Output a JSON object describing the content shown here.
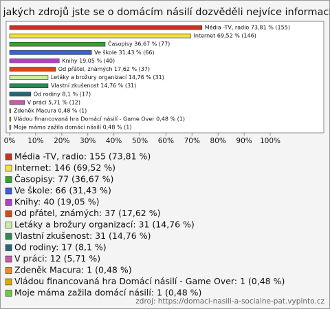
{
  "chart_data": {
    "type": "bar",
    "orientation": "horizontal",
    "title": "Z jakých zdrojů jste se o domácím násilí dozvěděli nejvíce informací?",
    "categories": [
      "Média -TV, radio",
      "Internet",
      "Časopisy",
      "Ve škole",
      "Knihy",
      "Od přátel, známých",
      "Letáky a brožury organizací",
      "Vlastní zkušenost",
      "Od rodiny",
      "V práci",
      "Zdeněk Macura",
      "Vládou financovaná hra Domácí násilí - Game Over",
      "Moje máma zažila domácí násilí"
    ],
    "values": [
      73.81,
      69.52,
      36.67,
      31.43,
      19.05,
      17.62,
      14.76,
      14.76,
      8.1,
      5.71,
      0.48,
      0.48,
      0.48
    ],
    "value_labels": [
      "Média -TV, radio 73,81 % (155)",
      "Internet 69,52 % (146)",
      "Časopisy 36,67 % (77)",
      "Ve škole 31,43 % (66)",
      "Knihy 19,05 % (40)",
      "Od přátel, známých 17,62 % (37)",
      "Letáky a brožury organizací 14,76 % (31)",
      "Vlastní zkušenost 14,76 % (31)",
      "Od rodiny 8,1 % (17)",
      "V práci 5,71 % (12)",
      "Zdeněk Macura 0,48 % (1)",
      "Vládou financovaná hra Domácí násilí - Game Over 0,48 % (1)",
      "Moje máma zažila domácí násilí 0,48 % (1)"
    ],
    "legend_labels": [
      "Média -TV, radio: 155 (73,81 %)",
      "Internet: 146 (69,52 %)",
      "Časopisy: 77 (36,67 %)",
      "Ve škole: 66 (31,43 %)",
      "Knihy: 40 (19,05 %)",
      "Od přátel, známých: 37 (17,62 %)",
      "Letáky a brožury organizací: 31 (14,76 %)",
      "Vlastní zkušenost: 31 (14,76 %)",
      "Od rodiny: 17 (8,1 %)",
      "V práci: 12 (5,71 %)",
      "Zdeněk Macura: 1 (0,48 %)",
      "Vládou financovaná hra Domácí násilí - Game Over: 1 (0,48 %)",
      "Moje máma zažila domácí násilí: 1 (0,48 %)"
    ],
    "colors": [
      "#c8321e",
      "#f2e03c",
      "#2fa52f",
      "#3a5fd8",
      "#b43cc8",
      "#dc4614",
      "#c8eea0",
      "#2a8a50",
      "#24687a",
      "#c85aaa",
      "#ec8a2c",
      "#dcaa00",
      "#6acc3a"
    ],
    "xlim": [
      0,
      100
    ],
    "xticks": [
      {
        "value": 0,
        "label": "0%"
      },
      {
        "value": 10,
        "label": "10%"
      },
      {
        "value": 20,
        "label": "20%"
      },
      {
        "value": 30,
        "label": "30%"
      },
      {
        "value": 40,
        "label": "40%"
      },
      {
        "value": 50,
        "label": "50%"
      },
      {
        "value": 60,
        "label": "60%"
      },
      {
        "value": 70,
        "label": "70%"
      },
      {
        "value": 80,
        "label": "80%"
      },
      {
        "value": 90,
        "label": "90%"
      },
      {
        "value": 100,
        "label": "100%"
      }
    ],
    "grid": false,
    "source": "zdroj: https://domaci-nasili-a-socialne-pat.vyplnto.cz"
  }
}
